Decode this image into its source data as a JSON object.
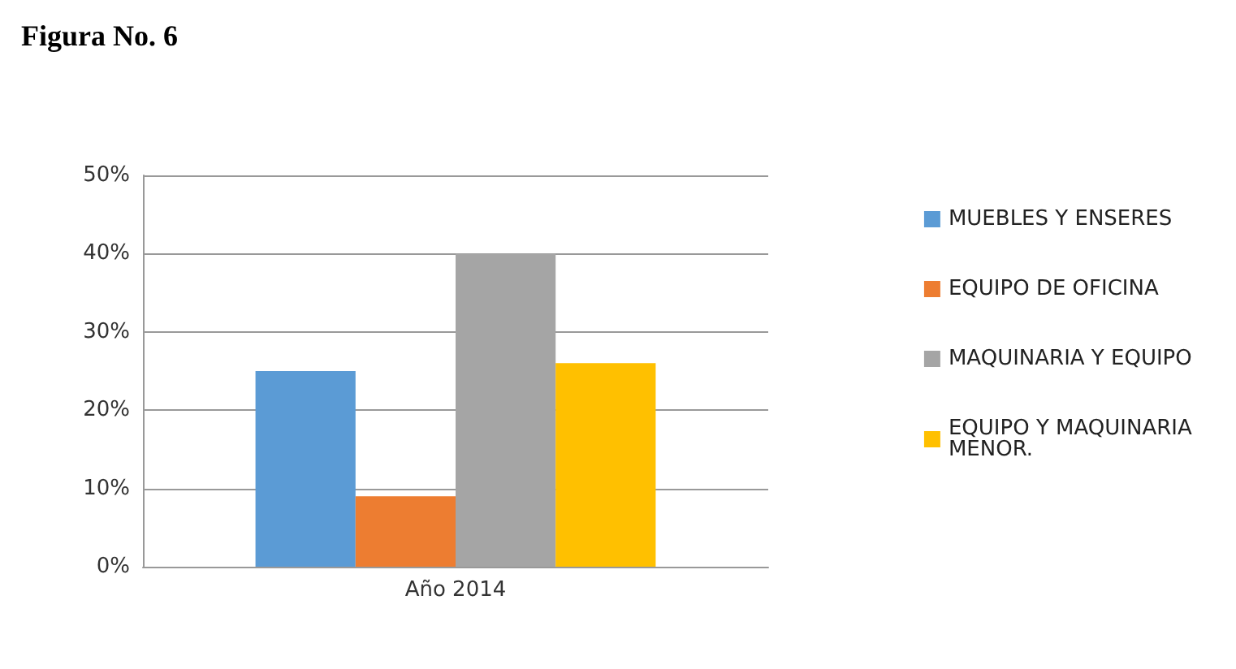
{
  "chart_data": {
    "type": "bar",
    "title": "Figura No. 6",
    "categories": [
      "Año 2014"
    ],
    "series": [
      {
        "name": "MUEBLES Y ENSERES",
        "color": "#5b9bd5",
        "values": [
          25
        ]
      },
      {
        "name": "EQUIPO DE OFICINA",
        "color": "#ed7d31",
        "values": [
          9
        ]
      },
      {
        "name": "MAQUINARIA Y EQUIPO",
        "color": "#a5a5a5",
        "values": [
          40
        ]
      },
      {
        "name": "EQUIPO Y MAQUINARIA MENOR.",
        "color": "#ffc000",
        "values": [
          26
        ]
      }
    ],
    "ylim": [
      0,
      50
    ],
    "yticks": [
      {
        "value": 0,
        "label": "0%"
      },
      {
        "value": 10,
        "label": "10%"
      },
      {
        "value": 20,
        "label": "20%"
      },
      {
        "value": 30,
        "label": "30%"
      },
      {
        "value": 40,
        "label": "40%"
      },
      {
        "value": 50,
        "label": "50%"
      }
    ],
    "grid": "y",
    "legend": "right"
  }
}
